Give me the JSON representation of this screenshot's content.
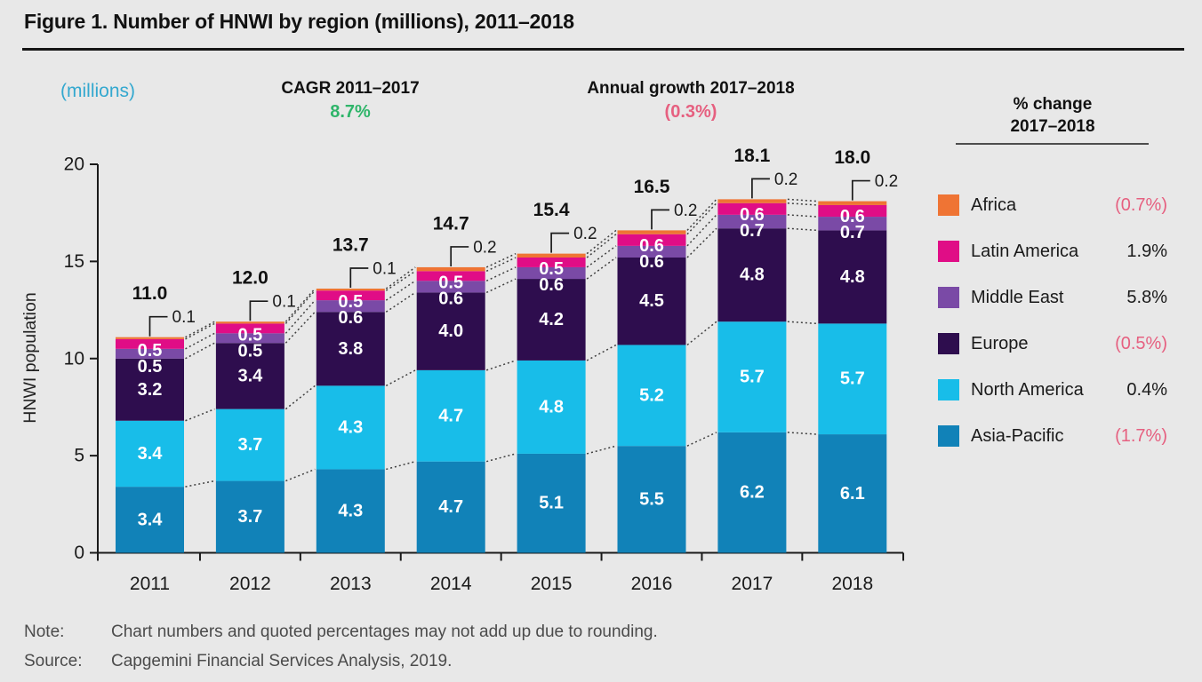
{
  "title": "Figure 1. Number of HNWI by region (millions), 2011–2018",
  "axis_unit_label": "(millions)",
  "cagr": {
    "label": "CAGR 2011–2017",
    "value": "8.7%"
  },
  "annual_growth": {
    "label": "Annual growth 2017–2018",
    "value": "(0.3%)"
  },
  "colors": {
    "positive_green": "#2fb56a",
    "negative_pink": "#e66080",
    "millions_cyan": "#33a8cf",
    "background_gray": "#e8e8e8"
  },
  "legend": {
    "header_line1": "% change",
    "header_line2": "2017–2018",
    "items": [
      {
        "name": "Africa",
        "pct": "(0.7%)",
        "negative": true,
        "color": "#ef7434"
      },
      {
        "name": "Latin America",
        "pct": "1.9%",
        "negative": false,
        "color": "#e00d86"
      },
      {
        "name": "Middle East",
        "pct": "5.8%",
        "negative": false,
        "color": "#7a4aa6"
      },
      {
        "name": "Europe",
        "pct": "(0.5%)",
        "negative": true,
        "color": "#2e0d4e"
      },
      {
        "name": "North America",
        "pct": "0.4%",
        "negative": false,
        "color": "#18bde9"
      },
      {
        "name": "Asia-Pacific",
        "pct": "(1.7%)",
        "negative": true,
        "color": "#1182b8"
      }
    ]
  },
  "chart_data": {
    "type": "bar",
    "stacked": true,
    "title": "Number of HNWI by region (millions), 2011–2018",
    "xlabel": "",
    "ylabel": "HNWI population",
    "ylim": [
      0,
      20
    ],
    "yticks": [
      0,
      5,
      10,
      15,
      20
    ],
    "grid": false,
    "legend_position": "right",
    "categories": [
      "2011",
      "2012",
      "2013",
      "2014",
      "2015",
      "2016",
      "2017",
      "2018"
    ],
    "series": [
      {
        "name": "Asia-Pacific",
        "color": "#1182b8",
        "values": [
          3.4,
          3.7,
          4.3,
          4.7,
          5.1,
          5.5,
          6.2,
          6.1
        ]
      },
      {
        "name": "North America",
        "color": "#18bde9",
        "values": [
          3.4,
          3.7,
          4.3,
          4.7,
          4.8,
          5.2,
          5.7,
          5.7
        ]
      },
      {
        "name": "Europe",
        "color": "#2e0d4e",
        "values": [
          3.2,
          3.4,
          3.8,
          4.0,
          4.2,
          4.5,
          4.8,
          4.8
        ]
      },
      {
        "name": "Middle East",
        "color": "#7a4aa6",
        "values": [
          0.5,
          0.5,
          0.6,
          0.6,
          0.6,
          0.6,
          0.7,
          0.7
        ]
      },
      {
        "name": "Latin America",
        "color": "#e00d86",
        "values": [
          0.5,
          0.5,
          0.5,
          0.5,
          0.5,
          0.6,
          0.6,
          0.6
        ]
      },
      {
        "name": "Africa",
        "color": "#ef7434",
        "values": [
          0.1,
          0.1,
          0.1,
          0.2,
          0.2,
          0.2,
          0.2,
          0.2
        ]
      }
    ],
    "totals": [
      "11.0",
      "12.0",
      "13.7",
      "14.7",
      "15.4",
      "16.5",
      "18.1",
      "18.0"
    ]
  },
  "note": {
    "label": "Note:",
    "text": "Chart numbers and quoted percentages may not add up due to rounding."
  },
  "source": {
    "label": "Source:",
    "text": "Capgemini Financial Services Analysis, 2019."
  }
}
